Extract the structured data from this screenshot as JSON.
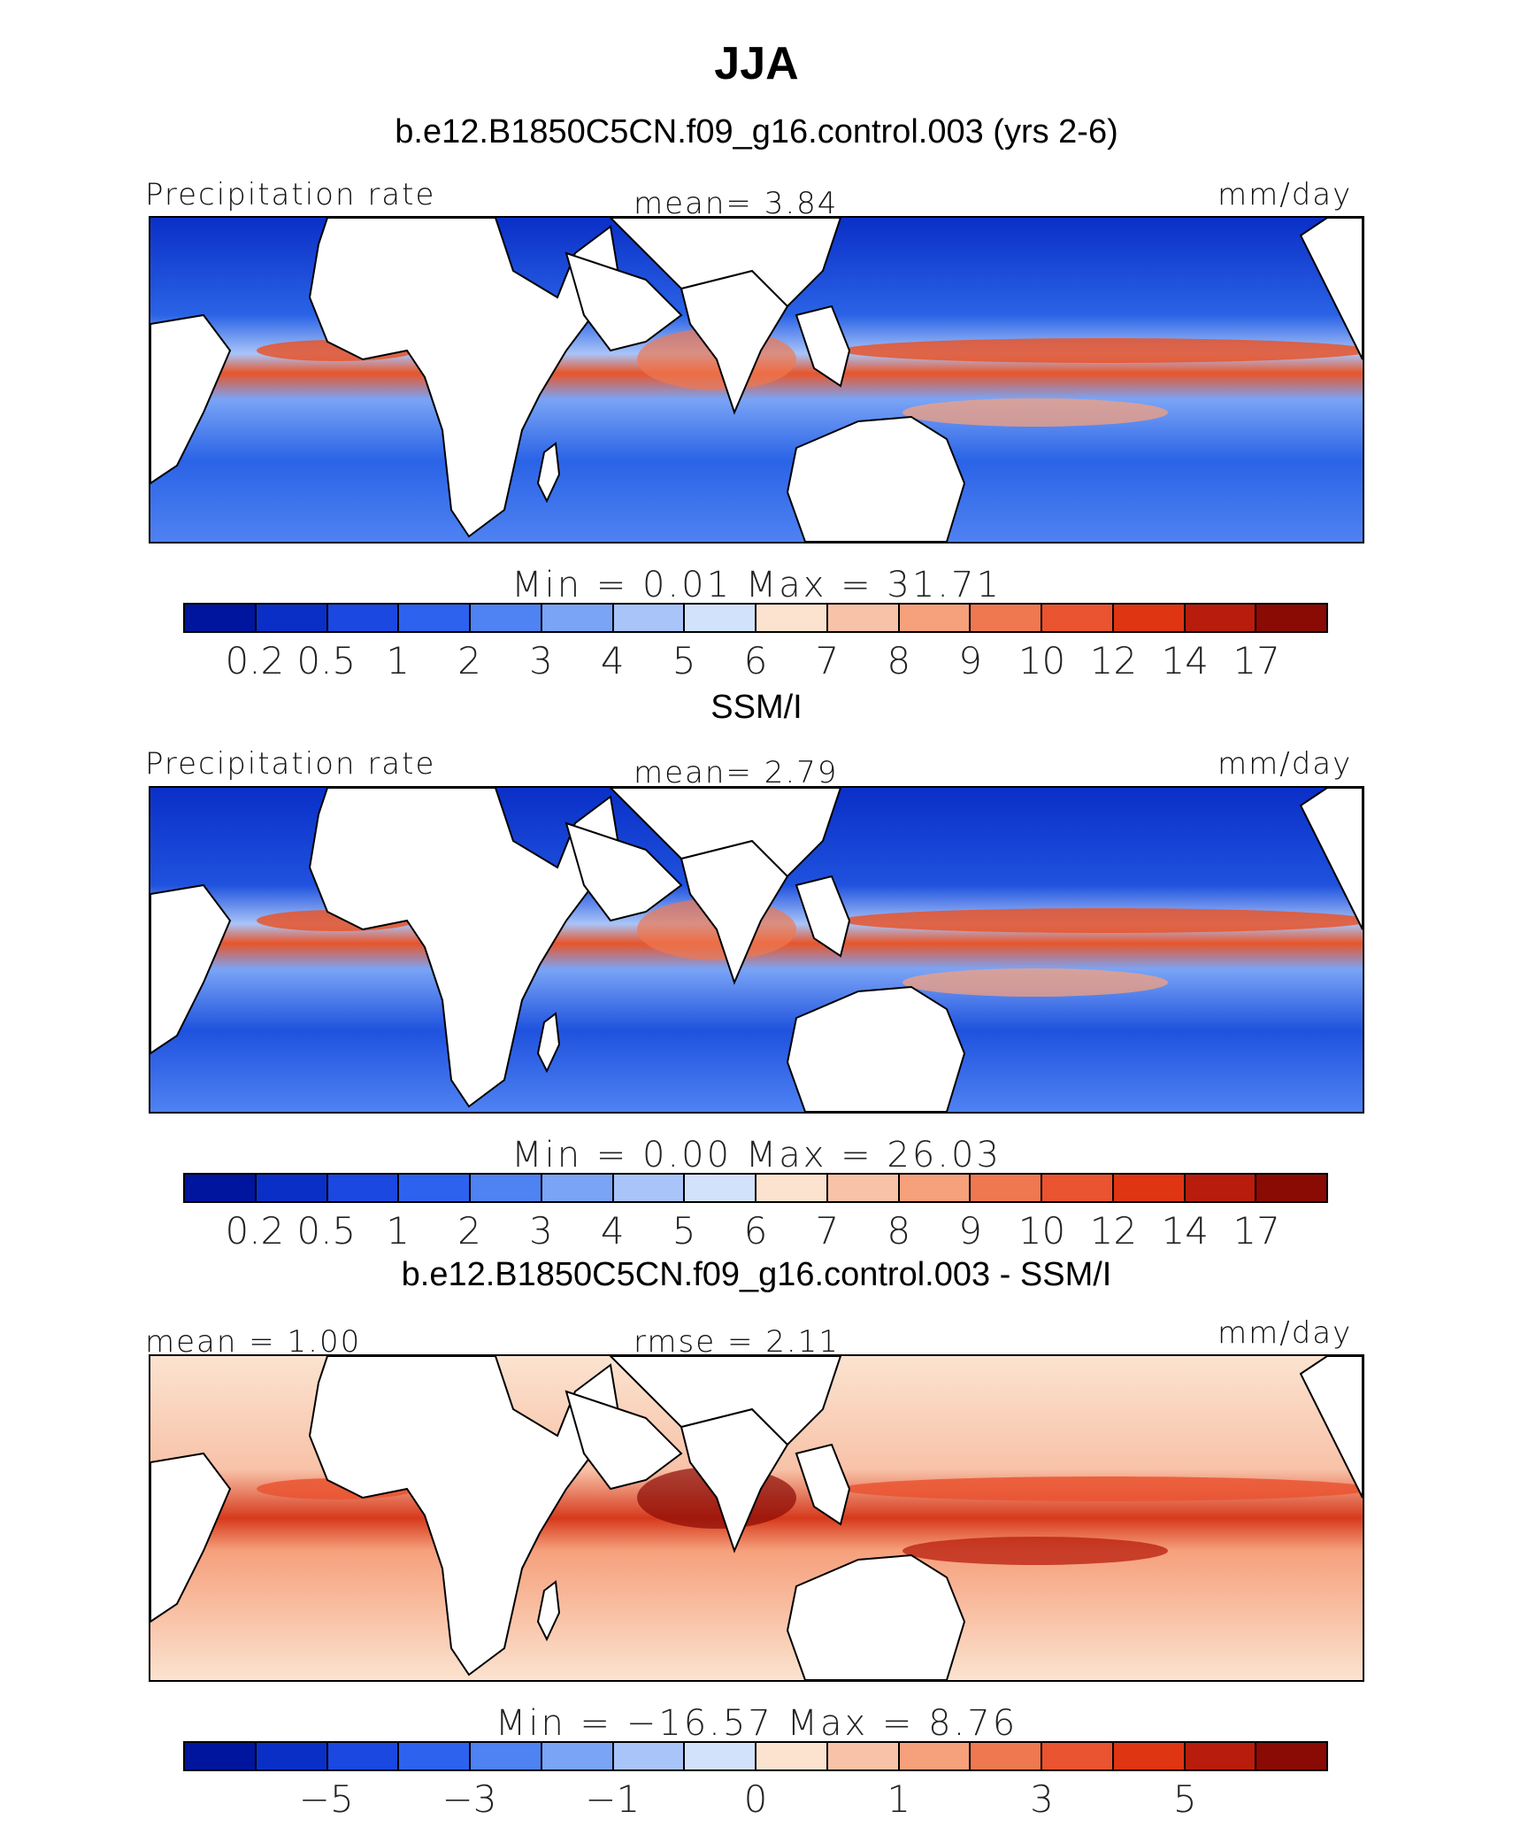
{
  "title": "JJA",
  "panels": [
    {
      "heading": "b.e12.B1850C5CN.f09_g16.control.003 (yrs 2-6)",
      "left_label": "Precipitation rate",
      "center_label": "mean=    3.84",
      "right_label": "mm/day",
      "minmax": "Min  =    0.01  Max  =   31.71",
      "mode": "abs",
      "fill": {
        "ocean": "#2a63e6",
        "band": "#e8552a"
      }
    },
    {
      "heading": "SSM/I",
      "left_label": "Precipitation rate",
      "center_label": "mean=    2.79",
      "right_label": "mm/day",
      "minmax": "Min  =    0.00  Max  =   26.03",
      "mode": "abs",
      "fill": {
        "ocean": "#1f52de",
        "band": "#e8552a"
      }
    },
    {
      "heading": "b.e12.B1850C5CN.f09_g16.control.003 - SSM/I",
      "left_label": "mean  =    1.00",
      "center_label": "rmse  =    2.11",
      "right_label": "mm/day",
      "minmax": "Min  = −16.57  Max  =    8.76",
      "mode": "diff",
      "fill": {
        "ocean": "#f7b49a",
        "band": "#d63a1c"
      }
    }
  ],
  "colorbars": {
    "colors": [
      "#00159e",
      "#0a2fc7",
      "#1a48e0",
      "#2d62ef",
      "#4f82f2",
      "#7aa4f6",
      "#a9c4f8",
      "#d3e2fb",
      "#fbe3d0",
      "#f8c2a8",
      "#f6a07c",
      "#f07850",
      "#ea5430",
      "#df3512",
      "#b81c0c",
      "#8a0a04"
    ],
    "abs_ticks": [
      "0.2",
      "0.5",
      "1",
      "2",
      "3",
      "4",
      "5",
      "6",
      "7",
      "8",
      "9",
      "10",
      "12",
      "14",
      "17"
    ],
    "diff_ticks": [
      "−5",
      "−3",
      "−1",
      "0",
      "1",
      "3",
      "5"
    ]
  }
}
